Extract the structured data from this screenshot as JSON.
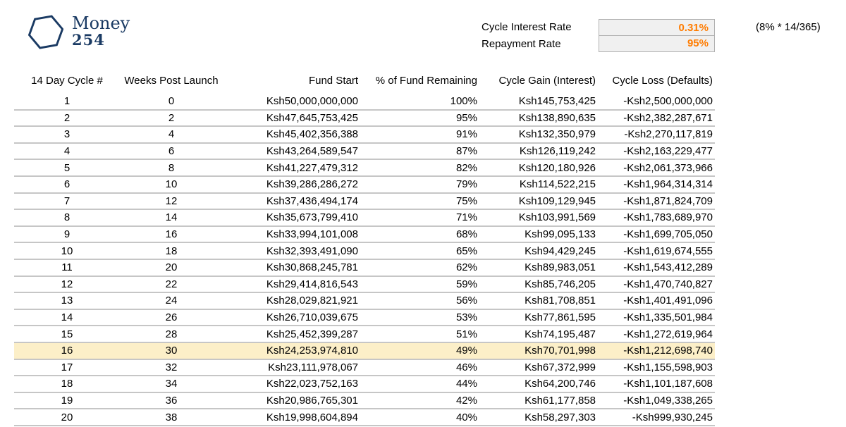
{
  "logo": {
    "word": "Money",
    "number": "254"
  },
  "rates": {
    "interest_label": "Cycle Interest Rate",
    "interest_value": "0.31%",
    "repayment_label": "Repayment Rate",
    "repayment_value": "95%",
    "note": "(8% * 14/365)"
  },
  "colors": {
    "brand_navy": "#1a3a63",
    "accent_orange": "#ff7c00",
    "highlight_row": "#fcefc8",
    "row_line": "#c6c6c6",
    "rate_box_bg": "#f0f0f0",
    "rate_box_border": "#b0b0b0"
  },
  "table": {
    "columns": [
      "14 Day Cycle #",
      "Weeks Post Launch",
      "Fund Start",
      "% of Fund Remaining",
      "Cycle Gain (Interest)",
      "Cycle Loss (Defaults)"
    ],
    "highlighted_row": 16,
    "rows": [
      [
        "1",
        "0",
        "Ksh50,000,000,000",
        "100%",
        "Ksh145,753,425",
        "-Ksh2,500,000,000"
      ],
      [
        "2",
        "2",
        "Ksh47,645,753,425",
        "95%",
        "Ksh138,890,635",
        "-Ksh2,382,287,671"
      ],
      [
        "3",
        "4",
        "Ksh45,402,356,388",
        "91%",
        "Ksh132,350,979",
        "-Ksh2,270,117,819"
      ],
      [
        "4",
        "6",
        "Ksh43,264,589,547",
        "87%",
        "Ksh126,119,242",
        "-Ksh2,163,229,477"
      ],
      [
        "5",
        "8",
        "Ksh41,227,479,312",
        "82%",
        "Ksh120,180,926",
        "-Ksh2,061,373,966"
      ],
      [
        "6",
        "10",
        "Ksh39,286,286,272",
        "79%",
        "Ksh114,522,215",
        "-Ksh1,964,314,314"
      ],
      [
        "7",
        "12",
        "Ksh37,436,494,174",
        "75%",
        "Ksh109,129,945",
        "-Ksh1,871,824,709"
      ],
      [
        "8",
        "14",
        "Ksh35,673,799,410",
        "71%",
        "Ksh103,991,569",
        "-Ksh1,783,689,970"
      ],
      [
        "9",
        "16",
        "Ksh33,994,101,008",
        "68%",
        "Ksh99,095,133",
        "-Ksh1,699,705,050"
      ],
      [
        "10",
        "18",
        "Ksh32,393,491,090",
        "65%",
        "Ksh94,429,245",
        "-Ksh1,619,674,555"
      ],
      [
        "11",
        "20",
        "Ksh30,868,245,781",
        "62%",
        "Ksh89,983,051",
        "-Ksh1,543,412,289"
      ],
      [
        "12",
        "22",
        "Ksh29,414,816,543",
        "59%",
        "Ksh85,746,205",
        "-Ksh1,470,740,827"
      ],
      [
        "13",
        "24",
        "Ksh28,029,821,921",
        "56%",
        "Ksh81,708,851",
        "-Ksh1,401,491,096"
      ],
      [
        "14",
        "26",
        "Ksh26,710,039,675",
        "53%",
        "Ksh77,861,595",
        "-Ksh1,335,501,984"
      ],
      [
        "15",
        "28",
        "Ksh25,452,399,287",
        "51%",
        "Ksh74,195,487",
        "-Ksh1,272,619,964"
      ],
      [
        "16",
        "30",
        "Ksh24,253,974,810",
        "49%",
        "Ksh70,701,998",
        "-Ksh1,212,698,740"
      ],
      [
        "17",
        "32",
        "Ksh23,111,978,067",
        "46%",
        "Ksh67,372,999",
        "-Ksh1,155,598,903"
      ],
      [
        "18",
        "34",
        "Ksh22,023,752,163",
        "44%",
        "Ksh64,200,746",
        "-Ksh1,101,187,608"
      ],
      [
        "19",
        "36",
        "Ksh20,986,765,301",
        "42%",
        "Ksh61,177,858",
        "-Ksh1,049,338,265"
      ],
      [
        "20",
        "38",
        "Ksh19,998,604,894",
        "40%",
        "Ksh58,297,303",
        "-Ksh999,930,245"
      ]
    ]
  }
}
